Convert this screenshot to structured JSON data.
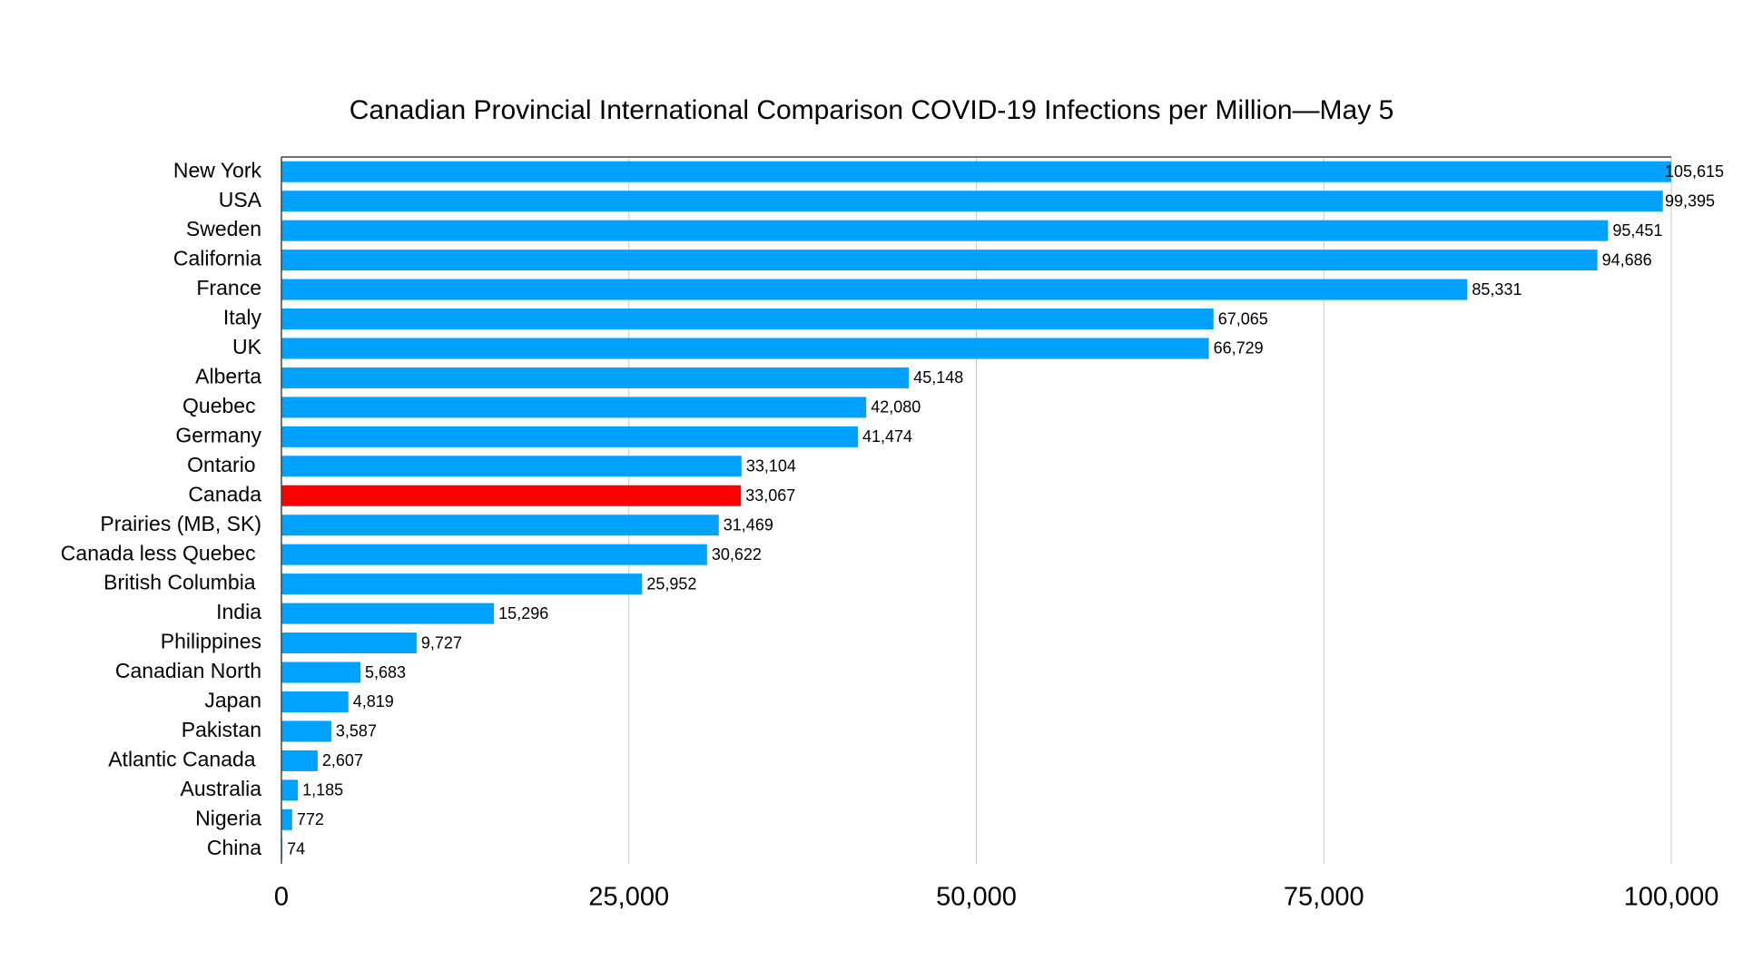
{
  "chart_data": {
    "type": "hbar",
    "title": "Canadian Provincial International Comparison COVID-19 Infections per Million—May 5",
    "categories": [
      "New York",
      "USA",
      "Sweden",
      "California",
      "France",
      "Italy",
      "UK",
      "Alberta",
      "Quebec ",
      "Germany",
      "Ontario ",
      "Canada",
      "Prairies (MB, SK)",
      "Canada less Quebec ",
      "British Columbia ",
      "India",
      "Philippines",
      "Canadian North",
      "Japan",
      "Pakistan",
      "Atlantic Canada ",
      "Australia",
      "Nigeria",
      "China"
    ],
    "values": [
      105615,
      99395,
      95451,
      94686,
      85331,
      67065,
      66729,
      45148,
      42080,
      41474,
      33104,
      33067,
      31469,
      30622,
      25952,
      15296,
      9727,
      5683,
      4819,
      3587,
      2607,
      1185,
      772,
      74
    ],
    "value_labels": [
      "105,615",
      "99,395",
      "95,451",
      "94,686",
      "85,331",
      "67,065",
      "66,729",
      "45,148",
      "42,080",
      "41,474",
      "33,104",
      "33,067",
      "31,469",
      "30,622",
      "25,952",
      "15,296",
      "9,727",
      "5,683",
      "4,819",
      "3,587",
      "2,607",
      "1,185",
      "772",
      "74"
    ],
    "colors": [
      "#00a2ff",
      "#00a2ff",
      "#00a2ff",
      "#00a2ff",
      "#00a2ff",
      "#00a2ff",
      "#00a2ff",
      "#00a2ff",
      "#00a2ff",
      "#00a2ff",
      "#00a2ff",
      "#ff0000",
      "#00a2ff",
      "#00a2ff",
      "#00a2ff",
      "#00a2ff",
      "#00a2ff",
      "#00a2ff",
      "#00a2ff",
      "#00a2ff",
      "#00a2ff",
      "#00a2ff",
      "#00a2ff",
      "#00a2ff"
    ],
    "xlim": [
      0,
      100000
    ],
    "xticks": [
      0,
      {
        "value": 25000,
        "label": "25,000"
      },
      {
        "value": 50000,
        "label": "50,000"
      },
      {
        "value": 75000,
        "label": "75,000"
      },
      {
        "value": 100000,
        "label": "100,000"
      }
    ],
    "grid": true
  }
}
